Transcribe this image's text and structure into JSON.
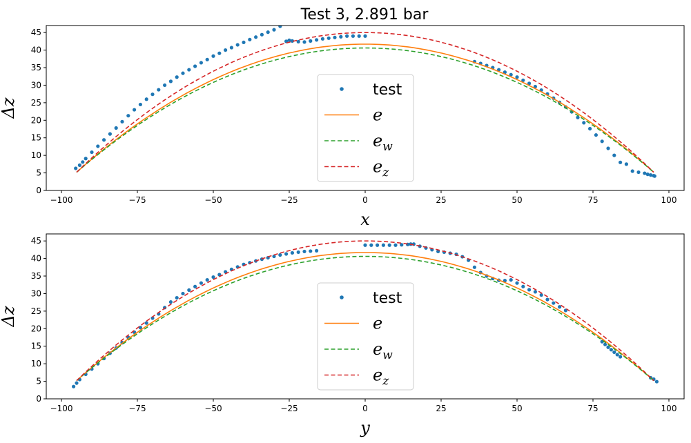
{
  "figure": {
    "title": "Test 3, 2.891 bar"
  },
  "chart_data": [
    {
      "type": "line",
      "title": "Test 3, 2.891 bar",
      "xlabel": "x",
      "ylabel": "Δz",
      "xlim": [
        -105,
        105
      ],
      "ylim": [
        0,
        47
      ],
      "xticks": [
        -100,
        -75,
        -50,
        -25,
        0,
        25,
        50,
        75,
        100
      ],
      "xticklabels": [
        "−100",
        "−75",
        "−50",
        "−25",
        "0",
        "25",
        "50",
        "75",
        "100"
      ],
      "yticks": [
        0,
        5,
        10,
        15,
        20,
        25,
        30,
        35,
        40,
        45
      ],
      "yticklabels": [
        "0",
        "5",
        "10",
        "15",
        "20",
        "25",
        "30",
        "35",
        "40",
        "45"
      ],
      "legend": {
        "placement": "lower-center"
      },
      "series": [
        {
          "name": "test",
          "style": "dots",
          "color": "#1f77b4",
          "x": [
            -95.3,
            -94,
            -93,
            -92,
            -90,
            -88,
            -86,
            -84,
            -82,
            -80,
            -78,
            -76,
            -74,
            -72,
            -70,
            -68,
            -66,
            -64,
            -62,
            -60,
            -58,
            -56,
            -54,
            -52,
            -50,
            -48,
            -46,
            -44,
            -42,
            -40,
            -38,
            -36,
            -34,
            -32,
            -30,
            -28,
            -26,
            -25,
            -24,
            -22,
            -20,
            -18,
            -16,
            -14,
            -12,
            -10,
            -8,
            -6,
            -4,
            -2,
            0,
            36,
            38,
            40,
            42,
            44,
            46,
            48,
            50,
            52,
            54,
            56,
            58,
            60,
            62,
            64,
            66,
            68,
            70,
            72,
            74,
            76,
            78,
            80,
            82,
            84,
            86,
            88,
            90,
            92,
            93,
            94,
            95,
            95.3
          ],
          "y": [
            6.3,
            7.2,
            8.1,
            9.1,
            10.9,
            12.6,
            14.4,
            16.1,
            17.8,
            19.6,
            21.3,
            23,
            24.5,
            26,
            27.4,
            28.7,
            30,
            31.1,
            32.3,
            33.4,
            34.4,
            35.4,
            36.4,
            37.3,
            38.3,
            39.1,
            40,
            40.7,
            41.5,
            42.2,
            43,
            43.7,
            44.4,
            45.1,
            45.8,
            46.8,
            42.5,
            42.8,
            42.6,
            42.4,
            42.3,
            42.6,
            42.9,
            43.2,
            43.4,
            43.6,
            43.8,
            44,
            44,
            44,
            44,
            36.7,
            36.2,
            35.6,
            35,
            34.4,
            33.7,
            33,
            32.3,
            31.4,
            30.5,
            29.6,
            28.6,
            27.5,
            26.3,
            25.1,
            23.8,
            22.4,
            20.8,
            19.3,
            17.6,
            15.8,
            14,
            12,
            10,
            8,
            7.5,
            5.5,
            5.2,
            4.9,
            4.6,
            4.4,
            4.2,
            4.1
          ]
        },
        {
          "name": "e",
          "style": "line",
          "color": "#ff7f0e",
          "curve": {
            "x": [
              -95,
              95
            ],
            "peak": 41.7,
            "end": 5.2
          }
        },
        {
          "name": "e_w",
          "style": "dashed",
          "color": "#2ca02c",
          "curve": {
            "x": [
              -95,
              95
            ],
            "peak": 40.6,
            "end": 5.2
          }
        },
        {
          "name": "e_z",
          "style": "dashed",
          "color": "#d62728",
          "curve": {
            "x": [
              -95,
              95
            ],
            "peak": 45.0,
            "end": 5.2
          }
        }
      ]
    },
    {
      "type": "line",
      "title": "",
      "xlabel": "y",
      "ylabel": "Δz",
      "xlim": [
        -105,
        105
      ],
      "ylim": [
        0,
        47
      ],
      "xticks": [
        -100,
        -75,
        -50,
        -25,
        0,
        25,
        50,
        75,
        100
      ],
      "xticklabels": [
        "−100",
        "−75",
        "−50",
        "−25",
        "0",
        "25",
        "50",
        "75",
        "100"
      ],
      "yticks": [
        0,
        5,
        10,
        15,
        20,
        25,
        30,
        35,
        40,
        45
      ],
      "yticklabels": [
        "0",
        "5",
        "10",
        "15",
        "20",
        "25",
        "30",
        "35",
        "40",
        "45"
      ],
      "legend": {
        "placement": "lower-center"
      },
      "series": [
        {
          "name": "test",
          "style": "dots",
          "color": "#1f77b4",
          "x": [
            -96,
            -95,
            -94,
            -92,
            -90,
            -88,
            -86,
            -84,
            -82,
            -80,
            -78,
            -76,
            -74,
            -72,
            -70,
            -68,
            -66,
            -64,
            -62,
            -60,
            -58,
            -56,
            -54,
            -52,
            -50,
            -48,
            -46,
            -44,
            -42,
            -40,
            -38,
            -36,
            -34,
            -32,
            -30,
            -28,
            -26,
            -24,
            -22,
            -20,
            -18,
            -16,
            0,
            2,
            4,
            6,
            8,
            10,
            12,
            14,
            15,
            16,
            18,
            20,
            22,
            24,
            26,
            28,
            30,
            32,
            34,
            36,
            38,
            40,
            42,
            44,
            46,
            48,
            50,
            52,
            54,
            56,
            58,
            60,
            62,
            64,
            66,
            78,
            79,
            80,
            81,
            82,
            83,
            84,
            94,
            95,
            96
          ],
          "y": [
            3.5,
            4.5,
            5.5,
            7,
            8.5,
            10,
            11.5,
            13,
            14.5,
            16,
            17.5,
            19,
            20.3,
            21.6,
            23,
            24.2,
            26,
            27.6,
            28.8,
            30,
            31,
            32,
            33,
            33.9,
            34.7,
            35.4,
            36.2,
            36.9,
            37.6,
            38.3,
            38.8,
            39.3,
            39.8,
            40.2,
            40.6,
            41,
            41.3,
            41.6,
            41.8,
            42,
            42.1,
            42.2,
            43.8,
            43.8,
            43.8,
            43.8,
            43.8,
            43.8,
            43.9,
            44,
            44.1,
            44.1,
            43.5,
            43,
            42.5,
            42,
            41.8,
            41.5,
            41.2,
            40.5,
            39.5,
            37.5,
            36,
            35,
            34.3,
            33.8,
            33.7,
            33.9,
            33,
            32,
            31.1,
            30.5,
            29.6,
            28.3,
            27.3,
            26.2,
            25.2,
            16.3,
            15.5,
            14.7,
            14,
            13.3,
            12.6,
            12,
            6,
            5.6,
            4.9
          ]
        },
        {
          "name": "e",
          "style": "line",
          "color": "#ff7f0e",
          "curve": {
            "x": [
              -95,
              95
            ],
            "peak": 41.7,
            "end": 5.2
          }
        },
        {
          "name": "e_w",
          "style": "dashed",
          "color": "#2ca02c",
          "curve": {
            "x": [
              -95,
              95
            ],
            "peak": 40.6,
            "end": 5.2
          }
        },
        {
          "name": "e_z",
          "style": "dashed",
          "color": "#d62728",
          "curve": {
            "x": [
              -95,
              95
            ],
            "peak": 45.0,
            "end": 5.2
          }
        }
      ]
    }
  ],
  "legend_labels": {
    "test": "test",
    "e": "e",
    "e_w_base": "e",
    "e_w_sub": "w",
    "e_z_base": "e",
    "e_z_sub": "z"
  }
}
